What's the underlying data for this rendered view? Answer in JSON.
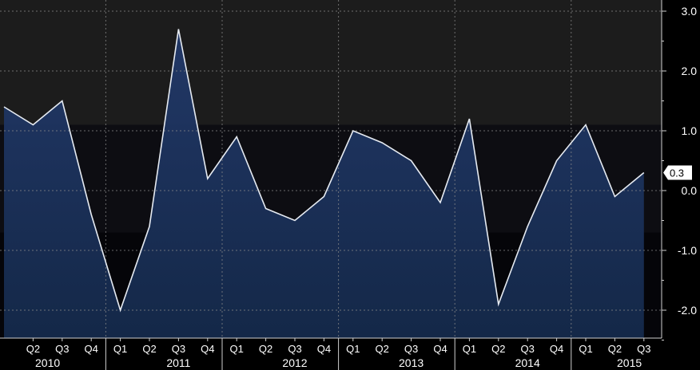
{
  "chart_data": {
    "type": "area",
    "title": "",
    "xlabel": "",
    "ylabel": "",
    "ylim": [
      -2.5,
      3.0
    ],
    "yticks": [
      {
        "value": 3.0,
        "label": "3.0"
      },
      {
        "value": 2.0,
        "label": "2.0"
      },
      {
        "value": 1.0,
        "label": "1.0"
      },
      {
        "value": 0.0,
        "label": "0.0"
      },
      {
        "value": -1.0,
        "label": "-1.0"
      },
      {
        "value": -2.0,
        "label": "-2.0"
      }
    ],
    "quarter_labels": [
      "Q2",
      "Q3",
      "Q4",
      "Q1",
      "Q2",
      "Q3",
      "Q4",
      "Q1",
      "Q2",
      "Q3",
      "Q4",
      "Q1",
      "Q2",
      "Q3",
      "Q4",
      "Q1",
      "Q2",
      "Q3",
      "Q4",
      "Q1",
      "Q2",
      "Q3"
    ],
    "year_labels": [
      {
        "label": "2010",
        "center_index": 1.5
      },
      {
        "label": "2011",
        "center_index": 6
      },
      {
        "label": "2012",
        "center_index": 10
      },
      {
        "label": "2013",
        "center_index": 14
      },
      {
        "label": "2014",
        "center_index": 18
      },
      {
        "label": "2015",
        "center_index": 21.5
      }
    ],
    "series": [
      {
        "x": [
          "2010 Q1",
          "2010 Q2",
          "2010 Q3",
          "2010 Q4",
          "2011 Q1",
          "2011 Q2",
          "2011 Q3",
          "2011 Q4",
          "2012 Q1",
          "2012 Q2",
          "2012 Q3",
          "2012 Q4",
          "2013 Q1",
          "2013 Q2",
          "2013 Q3",
          "2013 Q4",
          "2014 Q1",
          "2014 Q2",
          "2014 Q3",
          "2014 Q4",
          "2015 Q1",
          "2015 Q2",
          "2015 Q3"
        ],
        "values": [
          1.4,
          1.1,
          1.5,
          -0.4,
          -2.0,
          -0.6,
          2.7,
          0.2,
          0.9,
          -0.3,
          -0.5,
          -0.1,
          1.0,
          0.8,
          0.5,
          -0.2,
          1.2,
          -1.9,
          -0.6,
          0.5,
          1.1,
          -0.1,
          0.3
        ]
      }
    ],
    "last_value_label": "0.3",
    "grid": true,
    "legend": "none",
    "colors": {
      "background": "#000000",
      "band_dark": "#0d0d12",
      "band_light": "#1c1c1c",
      "area_fill": "#1b2d52",
      "line": "#e6ebf2",
      "grid": "#8a8a8a",
      "text": "#ffffff"
    }
  }
}
